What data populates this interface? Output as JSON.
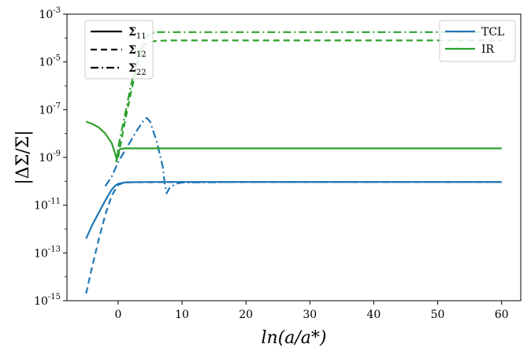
{
  "chart_data": {
    "type": "line",
    "xlabel": "ln(a/a*)",
    "ylabel": "|ΔΣ/Σ|",
    "xlim": [
      -8,
      63
    ],
    "ylim_log10": [
      -15,
      -3
    ],
    "yscale": "log",
    "grid": false,
    "x_ticks": [
      0,
      10,
      20,
      30,
      40,
      50,
      60
    ],
    "x_tick_labels": [
      "0",
      "10",
      "20",
      "30",
      "40",
      "50",
      "60"
    ],
    "y_ticks_log10": [
      -15,
      -13,
      -11,
      -9,
      -7,
      -5,
      -3
    ],
    "y_tick_labels": [
      "10^-15",
      "10^-13",
      "10^-11",
      "10^-9",
      "10^-7",
      "10^-5",
      "10^-3"
    ],
    "legend_components": {
      "placement": "top-left",
      "entries": [
        {
          "label": "Σ11",
          "dash": "solid"
        },
        {
          "label": "Σ12",
          "dash": "dashed"
        },
        {
          "label": "Σ22",
          "dash": "dashdot"
        }
      ]
    },
    "legend_methods": {
      "placement": "top-right",
      "entries": [
        {
          "label": "TCL",
          "color": "#1f77b4"
        },
        {
          "label": "IR",
          "color": "#2ca02c"
        }
      ]
    },
    "series": [
      {
        "name": "TCL Σ11",
        "color": "#1f77b4",
        "dash": "solid",
        "x": [
          -5,
          -4,
          -3,
          -2,
          -1,
          -0.5,
          0,
          1,
          2,
          5,
          10,
          20,
          40,
          60
        ],
        "log10_y": [
          -12.4,
          -11.8,
          -11.3,
          -10.8,
          -10.35,
          -10.2,
          -10.1,
          -10.05,
          -10.04,
          -10.03,
          -10.03,
          -10.03,
          -10.03,
          -10.03
        ]
      },
      {
        "name": "TCL Σ12",
        "color": "#1f77b4",
        "dash": "dashed",
        "x": [
          -5,
          -4,
          -3,
          -2,
          -1,
          0,
          1,
          2,
          5,
          10,
          20,
          40,
          60
        ],
        "log10_y": [
          -14.7,
          -13.5,
          -12.4,
          -11.4,
          -10.6,
          -10.15,
          -10.05,
          -10.04,
          -10.04,
          -10.03,
          -10.03,
          -10.03,
          -10.03
        ]
      },
      {
        "name": "TCL Σ22",
        "color": "#1f77b4",
        "dash": "dashdot",
        "x": [
          -2,
          -1,
          0,
          1,
          2,
          3,
          4,
          4.5,
          5,
          6,
          7,
          7.3,
          7.6,
          8,
          9,
          10,
          20,
          40,
          60
        ],
        "log10_y": [
          -10.2,
          -9.8,
          -9.2,
          -8.75,
          -8.3,
          -7.85,
          -7.45,
          -7.35,
          -7.5,
          -8.3,
          -9.4,
          -10.1,
          -10.5,
          -10.3,
          -10.1,
          -10.05,
          -10.03,
          -10.03,
          -10.03
        ]
      },
      {
        "name": "IR Σ11",
        "color": "#2ca02c",
        "dash": "solid",
        "x": [
          -5,
          -4,
          -3,
          -2,
          -1,
          -0.5,
          -0.2,
          0,
          0.3,
          1,
          2,
          3,
          5,
          10,
          20,
          40,
          60
        ],
        "log10_y": [
          -7.5,
          -7.6,
          -7.75,
          -8.0,
          -8.4,
          -8.8,
          -9.1,
          -8.75,
          -8.65,
          -8.62,
          -8.62,
          -8.62,
          -8.62,
          -8.62,
          -8.62,
          -8.62,
          -8.62
        ]
      },
      {
        "name": "IR Σ12",
        "color": "#2ca02c",
        "dash": "dashed",
        "x": [
          0,
          1,
          2,
          3,
          4,
          5,
          6,
          8,
          10,
          20,
          40,
          60
        ],
        "log10_y": [
          -9.0,
          -7.6,
          -6.3,
          -5.1,
          -4.3,
          -4.15,
          -4.12,
          -4.1,
          -4.1,
          -4.1,
          -4.1,
          -4.1
        ]
      },
      {
        "name": "IR Σ22",
        "color": "#2ca02c",
        "dash": "dashdot",
        "x": [
          -0.3,
          0,
          1,
          2,
          3,
          4,
          5,
          6,
          8,
          10,
          20,
          40,
          60
        ],
        "log10_y": [
          -9.2,
          -8.6,
          -7.3,
          -6.0,
          -4.9,
          -4.1,
          -3.8,
          -3.75,
          -3.75,
          -3.75,
          -3.75,
          -3.75,
          -3.75
        ]
      }
    ]
  }
}
